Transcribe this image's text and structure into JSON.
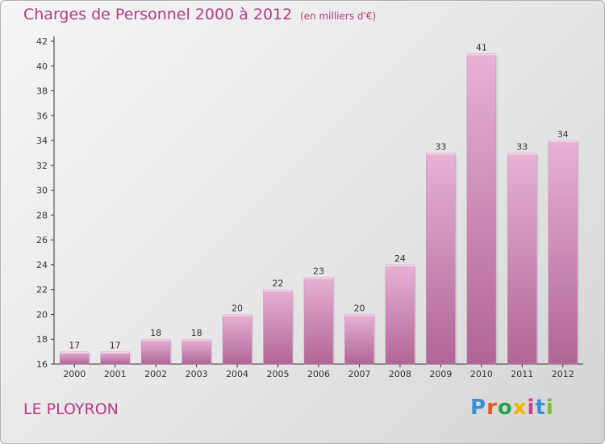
{
  "header": {
    "title": "Charges de Personnel 2000 à 2012",
    "subtitle": "(en milliers d'€)"
  },
  "footer": {
    "commune": "LE PLOYRON",
    "logo_text": "Proxiti",
    "logo_colors": [
      "#3a8fd6",
      "#e8562a",
      "#2aa14b",
      "#f0b400",
      "#d63a8f",
      "#3a8fd6",
      "#7cbf2a"
    ]
  },
  "colors": {
    "bar": "#d58fbd",
    "bar_light": "#e7b2d5",
    "bar_dark": "#b06596",
    "text_accent": "#b13a86"
  },
  "chart_data": {
    "type": "bar",
    "categories": [
      "2000",
      "2001",
      "2002",
      "2003",
      "2004",
      "2005",
      "2006",
      "2007",
      "2008",
      "2009",
      "2010",
      "2011",
      "2012"
    ],
    "values": [
      17,
      17,
      18,
      18,
      20,
      22,
      23,
      20,
      24,
      33,
      41,
      33,
      34
    ],
    "title": "Charges de Personnel 2000 à 2012",
    "subtitle": "(en milliers d'€)",
    "xlabel": "",
    "ylabel": "",
    "ylim": [
      16,
      42
    ],
    "yticks": [
      16,
      18,
      20,
      22,
      24,
      26,
      28,
      30,
      32,
      34,
      36,
      38,
      40,
      42
    ],
    "grid": false
  }
}
